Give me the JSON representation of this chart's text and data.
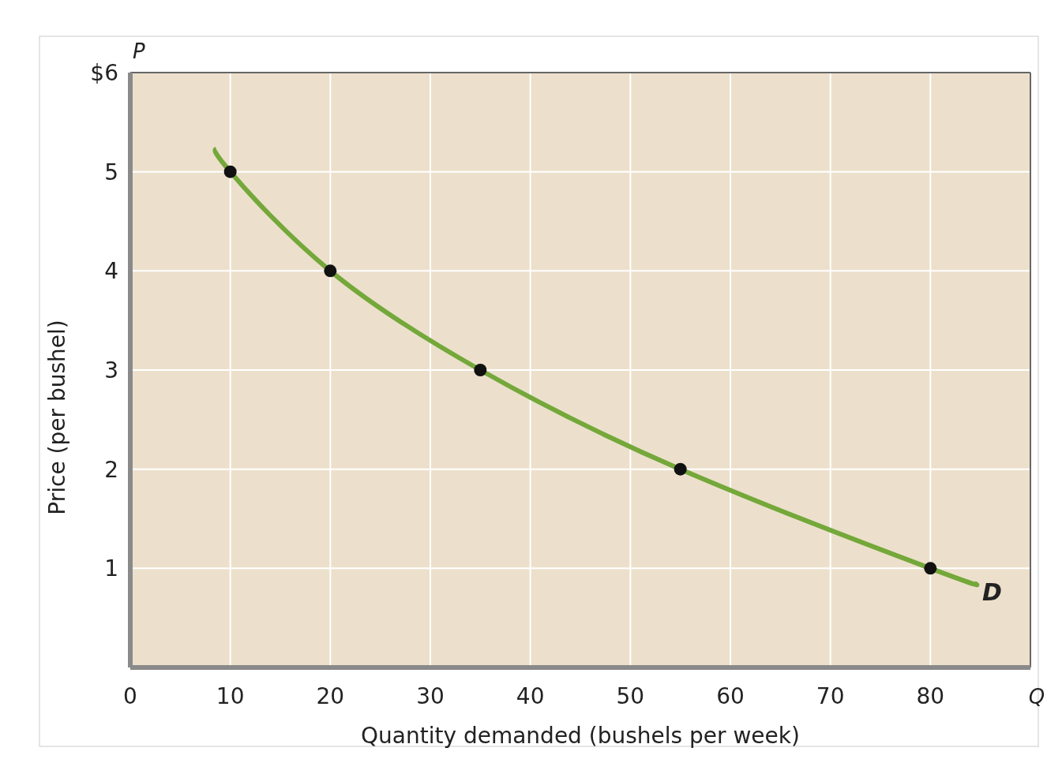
{
  "chart_data": {
    "type": "line",
    "xlabel": "Quantity demanded (bushels per week)",
    "ylabel": "Price (per bushel)",
    "annotations": [
      "P",
      "Q"
    ],
    "xlim": [
      0,
      90
    ],
    "ylim": [
      0,
      6
    ],
    "xticks": [
      0,
      10,
      20,
      30,
      40,
      50,
      60,
      70,
      80
    ],
    "yticks": [
      1,
      2,
      3,
      4,
      5,
      {
        "value": 6,
        "label": "$6"
      }
    ],
    "grid": true,
    "legend": false,
    "series": [
      {
        "name": "D",
        "color": "#74a83a",
        "marker": "none",
        "x": [
          8.6,
          10,
          20,
          35,
          55,
          80,
          84.4
        ],
        "values": [
          5.23,
          5,
          4,
          3,
          2,
          1,
          0.85
        ]
      },
      {
        "type": "scatter",
        "color": "#111111",
        "marker": "circle",
        "x": [
          10,
          20,
          35,
          55,
          80
        ],
        "values": [
          5,
          4,
          3,
          2,
          1
        ]
      }
    ]
  }
}
